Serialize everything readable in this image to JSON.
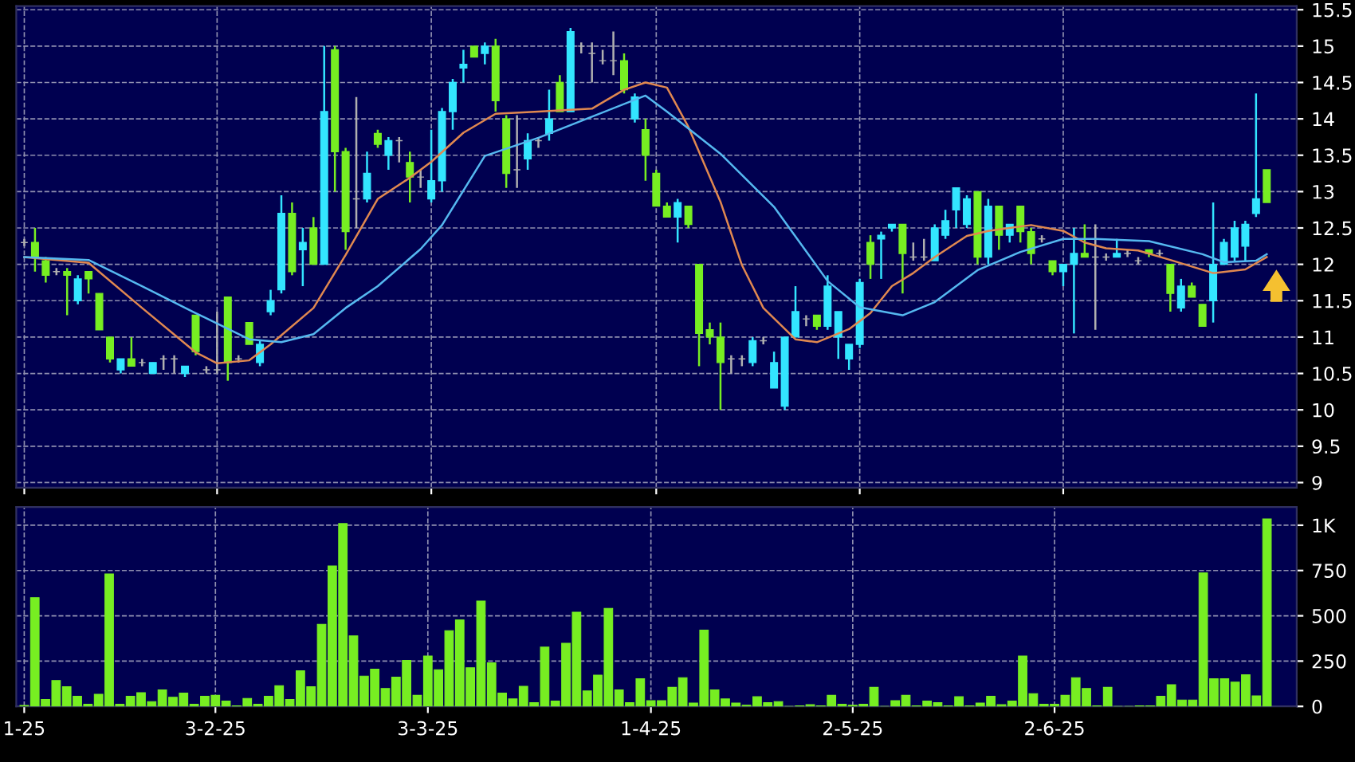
{
  "chart_data": [
    {
      "type": "candlestick",
      "categories": [
        null,
        null,
        null,
        null,
        null,
        null,
        null,
        null,
        null,
        null,
        null,
        null,
        null,
        null,
        null,
        null,
        null,
        null,
        null,
        null,
        null,
        null,
        null,
        null,
        null,
        null,
        null,
        null,
        null,
        null,
        null,
        null,
        null,
        null,
        null,
        null,
        null,
        null,
        null,
        null,
        null,
        null,
        null,
        null,
        null,
        null,
        null,
        null,
        null,
        null,
        null,
        null,
        null,
        null,
        null,
        null,
        null,
        null,
        null,
        null,
        null,
        null,
        null,
        null,
        null,
        null,
        null,
        null,
        null,
        null,
        null,
        null,
        null,
        null,
        null,
        null,
        null,
        null,
        null,
        null,
        null,
        null,
        null,
        null,
        null,
        null,
        null,
        null,
        null,
        null,
        null,
        null,
        null,
        null,
        null,
        null,
        null,
        null,
        null,
        null,
        null,
        null,
        null,
        null,
        null,
        null,
        null,
        null,
        null,
        null,
        null,
        null,
        null,
        null,
        null,
        null,
        null
      ],
      "ohlc": [
        [
          12.3,
          12.35,
          12.25,
          12.3
        ],
        [
          12.3,
          12.5,
          11.9,
          12.1
        ],
        [
          12.05,
          12.1,
          11.75,
          11.85
        ],
        [
          11.9,
          11.95,
          11.85,
          11.9
        ],
        [
          11.9,
          11.95,
          11.3,
          11.85
        ],
        [
          11.5,
          11.85,
          11.45,
          11.8
        ],
        [
          11.9,
          11.9,
          11.6,
          11.8
        ],
        [
          11.6,
          11.6,
          11.1,
          11.1
        ],
        [
          11.0,
          11.0,
          10.65,
          10.7
        ],
        [
          10.55,
          10.7,
          10.5,
          10.7
        ],
        [
          10.7,
          11.0,
          10.6,
          10.6
        ],
        [
          10.65,
          10.7,
          10.6,
          10.65
        ],
        [
          10.5,
          10.65,
          10.5,
          10.65
        ],
        [
          10.7,
          10.75,
          10.55,
          10.7
        ],
        [
          10.7,
          10.75,
          10.5,
          10.7
        ],
        [
          10.5,
          10.6,
          10.45,
          10.6
        ],
        [
          11.3,
          11.3,
          10.75,
          10.8
        ],
        [
          10.55,
          10.6,
          10.5,
          10.55
        ],
        [
          10.55,
          11.35,
          10.5,
          10.55
        ],
        [
          11.55,
          11.55,
          10.4,
          10.65
        ],
        [
          10.7,
          10.75,
          10.65,
          10.7
        ],
        [
          11.2,
          11.2,
          10.9,
          10.9
        ],
        [
          10.65,
          10.95,
          10.6,
          10.9
        ],
        [
          11.35,
          11.65,
          11.3,
          11.5
        ],
        [
          11.65,
          12.95,
          11.6,
          12.7
        ],
        [
          12.7,
          12.85,
          11.85,
          11.9
        ],
        [
          12.2,
          12.5,
          11.7,
          12.3
        ],
        [
          12.5,
          12.65,
          12.0,
          12.0
        ],
        [
          12.0,
          15.0,
          12.0,
          14.1
        ],
        [
          14.95,
          15.0,
          13.0,
          13.55
        ],
        [
          13.55,
          13.6,
          12.2,
          12.45
        ],
        [
          12.9,
          14.3,
          12.5,
          12.9
        ],
        [
          12.9,
          13.55,
          12.85,
          13.25
        ],
        [
          13.8,
          13.85,
          13.6,
          13.65
        ],
        [
          13.5,
          13.75,
          13.3,
          13.7
        ],
        [
          13.7,
          13.75,
          13.4,
          13.7
        ],
        [
          13.4,
          13.55,
          12.85,
          13.2
        ],
        [
          13.2,
          13.3,
          13.05,
          13.2
        ],
        [
          12.9,
          13.85,
          12.85,
          13.15
        ],
        [
          13.15,
          14.15,
          13.0,
          14.1
        ],
        [
          14.1,
          14.55,
          13.85,
          14.5
        ],
        [
          14.7,
          14.95,
          14.5,
          14.75
        ],
        [
          15.0,
          15.0,
          14.85,
          14.85
        ],
        [
          14.9,
          15.05,
          14.75,
          15.0
        ],
        [
          15.0,
          15.1,
          14.1,
          14.25
        ],
        [
          14.0,
          14.05,
          13.05,
          13.25
        ],
        [
          13.3,
          14.05,
          13.05,
          13.3
        ],
        [
          13.45,
          13.8,
          13.3,
          13.7
        ],
        [
          13.7,
          13.75,
          13.6,
          13.7
        ],
        [
          13.8,
          14.4,
          13.7,
          14.0
        ],
        [
          14.5,
          14.6,
          14.1,
          14.1
        ],
        [
          14.1,
          15.25,
          14.1,
          15.2
        ],
        [
          15.0,
          15.05,
          14.9,
          15.0
        ],
        [
          14.9,
          15.05,
          14.5,
          14.9
        ],
        [
          14.8,
          14.95,
          14.75,
          14.8
        ],
        [
          14.8,
          15.2,
          14.6,
          14.8
        ],
        [
          14.8,
          14.9,
          14.35,
          14.4
        ],
        [
          14.0,
          14.35,
          13.95,
          14.3
        ],
        [
          13.85,
          14.0,
          13.15,
          13.5
        ],
        [
          13.25,
          13.3,
          12.8,
          12.8
        ],
        [
          12.8,
          12.85,
          12.65,
          12.65
        ],
        [
          12.65,
          12.9,
          12.3,
          12.85
        ],
        [
          12.8,
          12.8,
          12.5,
          12.55
        ],
        [
          12.0,
          12.0,
          10.6,
          11.05
        ],
        [
          11.1,
          11.2,
          10.9,
          11.0
        ],
        [
          11.0,
          11.2,
          10.0,
          10.65
        ],
        [
          10.7,
          10.75,
          10.5,
          10.7
        ],
        [
          10.7,
          10.75,
          10.6,
          10.7
        ],
        [
          10.65,
          11.0,
          10.6,
          10.95
        ],
        [
          10.95,
          11.0,
          10.9,
          10.95
        ],
        [
          10.3,
          10.8,
          10.3,
          10.65
        ],
        [
          10.05,
          11.0,
          10.0,
          11.0
        ],
        [
          11.0,
          11.7,
          11.0,
          11.35
        ],
        [
          11.25,
          11.3,
          11.15,
          11.25
        ],
        [
          11.3,
          11.3,
          11.1,
          11.15
        ],
        [
          11.15,
          11.85,
          11.1,
          11.7
        ],
        [
          11.0,
          11.35,
          10.7,
          11.35
        ],
        [
          10.7,
          10.9,
          10.55,
          10.9
        ],
        [
          10.9,
          11.8,
          10.85,
          11.75
        ],
        [
          12.3,
          12.4,
          11.8,
          12.0
        ],
        [
          12.35,
          12.45,
          11.8,
          12.4
        ],
        [
          12.5,
          12.55,
          12.45,
          12.55
        ],
        [
          12.55,
          12.55,
          11.6,
          12.15
        ],
        [
          12.1,
          12.3,
          12.05,
          12.1
        ],
        [
          12.1,
          12.35,
          12.05,
          12.1
        ],
        [
          12.05,
          12.55,
          12.05,
          12.5
        ],
        [
          12.4,
          12.75,
          12.35,
          12.6
        ],
        [
          12.75,
          13.05,
          12.5,
          13.05
        ],
        [
          12.55,
          12.95,
          12.5,
          12.9
        ],
        [
          13.0,
          13.0,
          12.0,
          12.1
        ],
        [
          12.1,
          12.9,
          12.0,
          12.8
        ],
        [
          12.8,
          12.8,
          12.2,
          12.4
        ],
        [
          12.4,
          12.55,
          12.3,
          12.55
        ],
        [
          12.8,
          12.8,
          12.3,
          12.45
        ],
        [
          12.45,
          12.5,
          12.0,
          12.15
        ],
        [
          12.35,
          12.4,
          12.3,
          12.35
        ],
        [
          12.05,
          12.05,
          11.85,
          11.9
        ],
        [
          11.9,
          12.0,
          11.7,
          12.0
        ],
        [
          12.0,
          12.5,
          11.05,
          12.15
        ],
        [
          12.15,
          12.55,
          12.1,
          12.1
        ],
        [
          12.1,
          12.55,
          11.1,
          12.1
        ],
        [
          12.1,
          12.15,
          12.05,
          12.1
        ],
        [
          12.1,
          12.35,
          12.1,
          12.15
        ],
        [
          12.15,
          12.2,
          12.1,
          12.15
        ],
        [
          12.05,
          12.1,
          12.0,
          12.05
        ],
        [
          12.2,
          12.2,
          12.1,
          12.15
        ],
        [
          12.15,
          12.2,
          12.1,
          12.15
        ],
        [
          12.0,
          12.0,
          11.35,
          11.6
        ],
        [
          11.4,
          11.8,
          11.35,
          11.7
        ],
        [
          11.7,
          11.75,
          11.55,
          11.55
        ],
        [
          11.45,
          11.45,
          11.15,
          11.15
        ],
        [
          11.5,
          12.85,
          11.2,
          12.0
        ],
        [
          12.0,
          12.35,
          12.0,
          12.3
        ],
        [
          12.1,
          12.6,
          12.05,
          12.5
        ],
        [
          12.25,
          12.6,
          12.05,
          12.55
        ],
        [
          12.7,
          14.35,
          12.65,
          12.9
        ],
        [
          13.3,
          13.3,
          12.85,
          12.85
        ]
      ],
      "colors": [
        "#b0b0b0",
        "#77ee22",
        "#77ee22",
        "#b0b0b0",
        "#77ee22",
        "#33e5ff",
        "#77ee22",
        "#77ee22",
        "#77ee22",
        "#33e5ff",
        "#77ee22",
        "#b0b0b0",
        "#33e5ff",
        "#b0b0b0",
        "#b0b0b0",
        "#33e5ff",
        "#77ee22",
        "#b0b0b0",
        "#b0b0b0",
        "#77ee22",
        "#b0b0b0",
        "#77ee22",
        "#33e5ff",
        "#33e5ff",
        "#33e5ff",
        "#77ee22",
        "#33e5ff",
        "#77ee22",
        "#33e5ff",
        "#77ee22",
        "#77ee22",
        "#b0b0b0",
        "#33e5ff",
        "#77ee22",
        "#33e5ff",
        "#b0b0b0",
        "#77ee22",
        "#b0b0b0",
        "#33e5ff",
        "#33e5ff",
        "#33e5ff",
        "#33e5ff",
        "#77ee22",
        "#33e5ff",
        "#77ee22",
        "#77ee22",
        "#b0b0b0",
        "#33e5ff",
        "#b0b0b0",
        "#33e5ff",
        "#77ee22",
        "#33e5ff",
        "#b0b0b0",
        "#b0b0b0",
        "#b0b0b0",
        "#b0b0b0",
        "#77ee22",
        "#33e5ff",
        "#77ee22",
        "#77ee22",
        "#77ee22",
        "#33e5ff",
        "#77ee22",
        "#77ee22",
        "#77ee22",
        "#77ee22",
        "#b0b0b0",
        "#b0b0b0",
        "#33e5ff",
        "#b0b0b0",
        "#33e5ff",
        "#33e5ff",
        "#33e5ff",
        "#b0b0b0",
        "#77ee22",
        "#33e5ff",
        "#33e5ff",
        "#33e5ff",
        "#33e5ff",
        "#77ee22",
        "#33e5ff",
        "#33e5ff",
        "#77ee22",
        "#b0b0b0",
        "#b0b0b0",
        "#33e5ff",
        "#33e5ff",
        "#33e5ff",
        "#33e5ff",
        "#77ee22",
        "#33e5ff",
        "#77ee22",
        "#33e5ff",
        "#77ee22",
        "#77ee22",
        "#b0b0b0",
        "#77ee22",
        "#33e5ff",
        "#33e5ff",
        "#77ee22",
        "#b0b0b0",
        "#b0b0b0",
        "#33e5ff",
        "#b0b0b0",
        "#b0b0b0",
        "#77ee22",
        "#b0b0b0",
        "#77ee22",
        "#33e5ff",
        "#77ee22",
        "#77ee22",
        "#33e5ff",
        "#33e5ff",
        "#33e5ff",
        "#33e5ff",
        "#33e5ff",
        "#77ee22"
      ],
      "series": [
        {
          "type": "line",
          "color": "#e08850",
          "values": [
            12.1,
            null,
            null,
            null,
            null,
            null,
            12.02,
            null,
            null,
            null,
            null,
            11.4,
            null,
            null,
            null,
            null,
            10.79,
            null,
            10.64,
            null,
            null,
            10.68,
            null,
            10.9,
            null,
            null,
            null,
            11.4,
            null,
            null,
            12.13,
            null,
            null,
            12.9,
            null,
            null,
            13.19,
            null,
            13.41,
            null,
            null,
            13.81,
            null,
            null,
            14.07,
            null,
            null,
            null,
            14.1,
            null,
            null,
            null,
            null,
            14.14,
            null,
            null,
            14.4,
            null,
            14.5,
            null,
            14.43,
            null,
            13.89,
            null,
            null,
            12.86,
            null,
            11.99,
            null,
            11.4,
            null,
            null,
            10.97,
            null,
            10.93,
            null,
            null,
            11.11,
            null,
            11.33,
            null,
            11.7,
            null,
            11.88,
            null,
            12.1,
            null,
            null,
            12.39,
            null,
            12.46,
            null,
            null,
            null,
            12.54,
            null,
            null,
            12.46,
            null,
            12.3,
            null,
            12.22,
            null,
            null,
            12.19,
            null,
            null,
            12.06,
            null,
            null,
            null,
            11.88,
            null,
            null,
            11.93,
            null,
            12.1
          ]
        },
        {
          "type": "line",
          "color": "#55b8f0",
          "values": [
            12.1,
            null,
            null,
            null,
            null,
            null,
            12.06,
            null,
            null,
            null,
            null,
            11.7,
            null,
            null,
            null,
            null,
            11.33,
            null,
            null,
            null,
            null,
            10.97,
            null,
            null,
            10.93,
            null,
            null,
            11.04,
            null,
            null,
            11.4,
            null,
            null,
            11.7,
            null,
            null,
            null,
            12.21,
            null,
            12.54,
            null,
            null,
            null,
            13.49,
            null,
            null,
            null,
            null,
            13.74,
            null,
            null,
            null,
            null,
            14.03,
            null,
            null,
            null,
            null,
            14.32,
            null,
            14.1,
            null,
            null,
            null,
            null,
            13.52,
            null,
            null,
            null,
            null,
            12.79,
            null,
            null,
            null,
            null,
            11.77,
            null,
            null,
            11.41,
            null,
            null,
            null,
            11.3,
            null,
            null,
            11.48,
            null,
            null,
            null,
            11.92,
            null,
            null,
            null,
            12.17,
            null,
            null,
            null,
            12.35,
            null,
            null,
            12.35,
            null,
            null,
            null,
            null,
            12.32,
            null,
            null,
            null,
            null,
            12.14,
            null,
            12.03,
            null,
            null,
            12.05,
            12.14
          ]
        }
      ],
      "ylim": [
        8.93,
        15.55
      ],
      "yticks": [
        9,
        9.5,
        10,
        10.5,
        11,
        11.5,
        12,
        12.5,
        13,
        13.5,
        14,
        14.5,
        15,
        15.5
      ],
      "grid": true,
      "tick_labels": "y"
    },
    {
      "type": "bar",
      "categories": [
        "1-25",
        null,
        null,
        null,
        null,
        null,
        null,
        null,
        null,
        null,
        null,
        null,
        null,
        null,
        null,
        null,
        null,
        null,
        "3-2-25",
        null,
        null,
        null,
        null,
        null,
        null,
        null,
        null,
        null,
        null,
        null,
        null,
        null,
        null,
        null,
        null,
        null,
        null,
        null,
        "3-3-25",
        null,
        null,
        null,
        null,
        null,
        null,
        null,
        null,
        null,
        null,
        null,
        null,
        null,
        null,
        null,
        null,
        null,
        null,
        null,
        null,
        "1-4-25",
        null,
        null,
        null,
        null,
        null,
        null,
        null,
        null,
        null,
        null,
        null,
        null,
        null,
        null,
        null,
        null,
        null,
        null,
        "2-5-25",
        null,
        null,
        null,
        null,
        null,
        null,
        null,
        null,
        null,
        null,
        null,
        null,
        null,
        null,
        null,
        null,
        null,
        null,
        "2-6-25",
        null,
        null,
        null,
        null,
        null,
        null,
        null,
        null,
        null,
        null,
        null,
        null,
        null,
        null,
        null,
        null,
        null,
        null,
        null,
        null
      ],
      "values": [
        5,
        600,
        38,
        143,
        108,
        56,
        12,
        67,
        731,
        12,
        56,
        76,
        26,
        91,
        50,
        73,
        12,
        56,
        61,
        29,
        3,
        44,
        12,
        56,
        114,
        38,
        196,
        108,
        453,
        775,
        1009,
        389,
        167,
        205,
        99,
        161,
        254,
        61,
        278,
        202,
        418,
        477,
        213,
        582,
        240,
        73,
        41,
        111,
        20,
        327,
        29,
        348,
        520,
        85,
        172,
        541,
        91,
        20,
        152,
        32,
        32,
        105,
        158,
        18,
        421,
        91,
        41,
        18,
        6,
        53,
        20,
        26,
        0,
        3,
        9,
        3,
        61,
        12,
        6,
        12,
        105,
        0,
        32,
        61,
        3,
        29,
        20,
        3,
        53,
        3,
        18,
        56,
        9,
        29,
        278,
        70,
        12,
        12,
        61,
        158,
        99,
        3,
        105,
        0,
        0,
        3,
        3,
        56,
        120,
        35,
        35,
        737,
        152,
        152,
        134,
        175,
        58,
        1035
      ],
      "color": "#77ee22",
      "ylim": [
        0,
        1100
      ],
      "yticks": [
        0,
        250,
        500,
        750,
        {
          "value": 1000,
          "label": "1K"
        }
      ],
      "grid": true
    }
  ]
}
